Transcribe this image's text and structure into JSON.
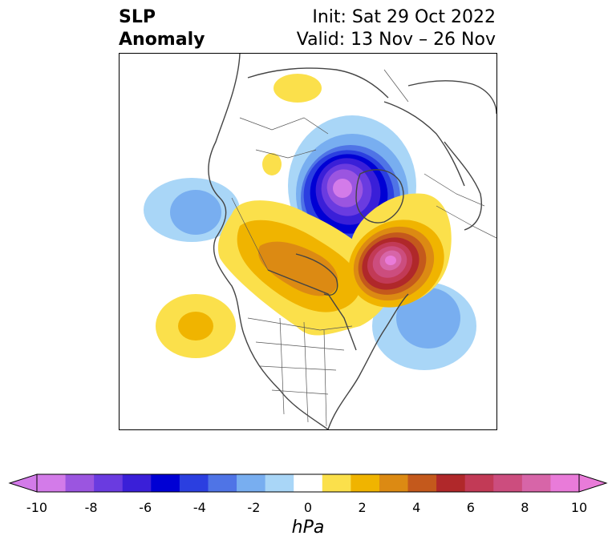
{
  "title": {
    "line1": "SLP",
    "line2": "Anomaly",
    "init": "Init: Sat 29 Oct 2022",
    "valid": "Valid: 13 Nov – 26 Nov"
  },
  "colorbar": {
    "unit": "hPa",
    "min": -10,
    "max": 10,
    "ticks": [
      "-10",
      "-8",
      "-6",
      "-4",
      "-2",
      "0",
      "2",
      "4",
      "6",
      "8",
      "10"
    ],
    "colors": [
      "#d37be9",
      "#9b55e0",
      "#6a3be0",
      "#3a1fd8",
      "#0000d4",
      "#2b3fe0",
      "#4f74e6",
      "#78aef0",
      "#a9d6f7",
      "#ffffff",
      "#fbe04b",
      "#f0b400",
      "#dc8a13",
      "#c4591c",
      "#b0282a",
      "#c23a56",
      "#cc4d7e",
      "#d765a8",
      "#e97bd9"
    ],
    "under_color": "#d37be9",
    "over_color": "#e97bd9"
  },
  "map": {
    "region": "North America / North Atlantic / Arctic",
    "features": [
      {
        "name": "Arctic low anomaly",
        "sign": "negative",
        "peak_hpa": -10
      },
      {
        "name": "North Atlantic high anomaly",
        "sign": "positive",
        "peak_hpa": 10
      },
      {
        "name": "Western Canada high anomaly",
        "sign": "positive",
        "peak_hpa": 4
      },
      {
        "name": "Northeast Pacific high anomaly",
        "sign": "positive",
        "peak_hpa": 3
      },
      {
        "name": "Western Atlantic low anomaly",
        "sign": "negative",
        "peak_hpa": -4
      },
      {
        "name": "Alaska/Bering low anomaly",
        "sign": "negative",
        "peak_hpa": -3
      },
      {
        "name": "Siberian high anomaly",
        "sign": "positive",
        "peak_hpa": 1
      }
    ]
  }
}
